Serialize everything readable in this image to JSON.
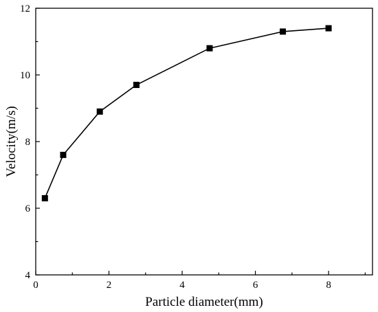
{
  "chart_data": {
    "type": "line",
    "title": "",
    "xlabel": "Particle diameter(mm)",
    "ylabel": "Velocity(m/s)",
    "xlim": [
      0,
      9.2
    ],
    "ylim": [
      4,
      12
    ],
    "xticks": [
      0,
      2,
      4,
      6,
      8
    ],
    "yticks": [
      4,
      6,
      8,
      10,
      12
    ],
    "grid": false,
    "legend": "none",
    "series": [
      {
        "x": [
          0.25,
          0.75,
          1.75,
          2.75,
          4.75,
          6.75,
          8.0
        ],
        "y": [
          6.3,
          7.6,
          8.9,
          9.7,
          10.8,
          11.3,
          11.4
        ],
        "marker": "square",
        "color": "#000000"
      }
    ]
  }
}
